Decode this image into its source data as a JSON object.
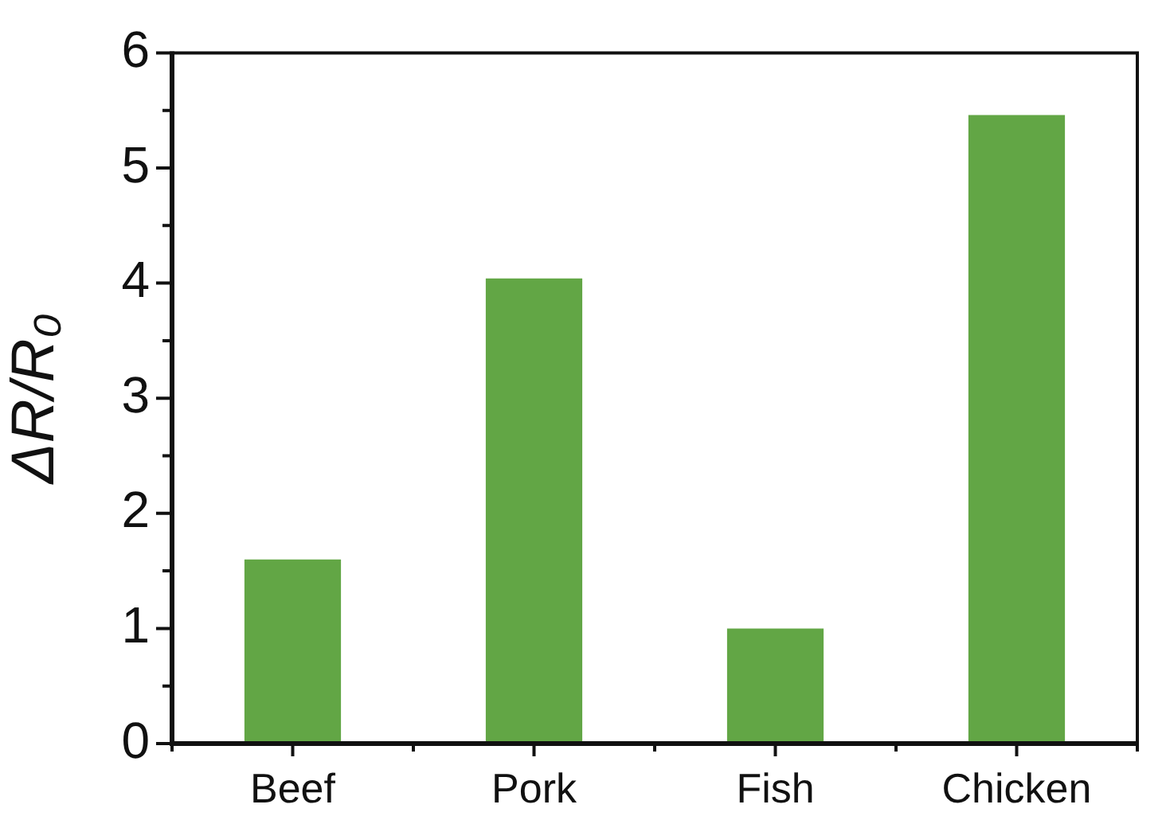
{
  "chart_data": {
    "type": "bar",
    "ylabel": "ΔR/R₀",
    "categories": [
      "Beef",
      "Pork",
      "Fish",
      "Chicken"
    ],
    "values": [
      1.6,
      4.04,
      1.0,
      5.46
    ],
    "color": "#62a645",
    "ylim": [
      0,
      6
    ],
    "yticks": [
      0,
      {
        "value": 0.5,
        "label": null
      },
      1,
      {
        "value": 1.5,
        "label": null
      },
      2,
      {
        "value": 2.5,
        "label": null
      },
      3,
      {
        "value": 3.5,
        "label": null
      },
      4,
      {
        "value": 4.5,
        "label": null
      },
      5,
      {
        "value": 5.5,
        "label": null
      },
      6
    ]
  }
}
